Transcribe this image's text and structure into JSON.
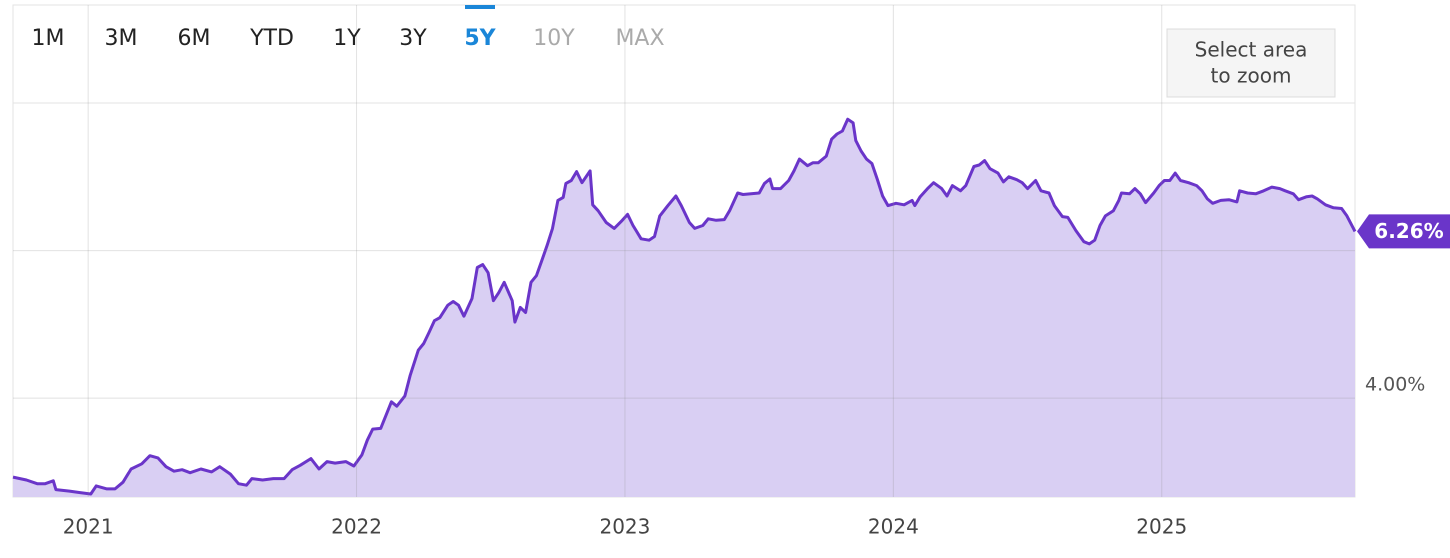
{
  "toolbar": {
    "ranges": [
      "1M",
      "3M",
      "6M",
      "YTD",
      "1Y",
      "3Y",
      "5Y",
      "10Y",
      "MAX"
    ],
    "active": 6,
    "disabled": [
      7,
      8
    ],
    "zoom_label": [
      "Select area",
      "to zoom"
    ]
  },
  "chart_data": {
    "type": "area",
    "color": "#6a35c9",
    "fill": "#d9cff3",
    "x": [
      2020.72,
      2020.77,
      2020.81,
      2020.84,
      2020.87,
      2020.88,
      2020.93,
      2020.97,
      2021.01,
      2021.03,
      2021.07,
      2021.1,
      2021.13,
      2021.16,
      2021.2,
      2021.23,
      2021.26,
      2021.29,
      2021.32,
      2021.35,
      2021.38,
      2021.42,
      2021.46,
      2021.49,
      2021.53,
      2021.56,
      2021.59,
      2021.61,
      2021.65,
      2021.69,
      2021.73,
      2021.76,
      2021.79,
      2021.83,
      2021.86,
      2021.89,
      2021.92,
      2021.96,
      2021.99,
      2022.02,
      2022.04,
      2022.06,
      2022.09,
      2022.11,
      2022.13,
      2022.15,
      2022.18,
      2022.2,
      2022.23,
      2022.25,
      2022.27,
      2022.29,
      2022.31,
      2022.34,
      2022.36,
      2022.38,
      2022.4,
      2022.43,
      2022.45,
      2022.47,
      2022.49,
      2022.51,
      2022.53,
      2022.55,
      2022.58,
      2022.59,
      2022.61,
      2022.63,
      2022.65,
      2022.67,
      2022.69,
      2022.71,
      2022.73,
      2022.75,
      2022.77,
      2022.78,
      2022.8,
      2022.82,
      2022.84,
      2022.87,
      2022.88,
      2022.9,
      2022.93,
      2022.96,
      2022.99,
      2023.01,
      2023.03,
      2023.06,
      2023.09,
      2023.11,
      2023.13,
      2023.16,
      2023.19,
      2023.21,
      2023.24,
      2023.26,
      2023.29,
      2023.31,
      2023.34,
      2023.37,
      2023.39,
      2023.42,
      2023.44,
      2023.47,
      2023.5,
      2023.52,
      2023.54,
      2023.55,
      2023.58,
      2023.61,
      2023.63,
      2023.65,
      2023.68,
      2023.7,
      2023.72,
      2023.75,
      2023.77,
      2023.79,
      2023.81,
      2023.83,
      2023.85,
      2023.86,
      2023.88,
      2023.9,
      2023.92,
      2023.94,
      2023.96,
      2023.98,
      2024.01,
      2024.04,
      2024.07,
      2024.08,
      2024.1,
      2024.13,
      2024.15,
      2024.18,
      2024.2,
      2024.22,
      2024.25,
      2024.27,
      2024.3,
      2024.32,
      2024.34,
      2024.36,
      2024.39,
      2024.41,
      2024.43,
      2024.46,
      2024.48,
      2024.5,
      2024.53,
      2024.55,
      2024.58,
      2024.6,
      2024.63,
      2024.65,
      2024.68,
      2024.71,
      2024.73,
      2024.75,
      2024.77,
      2024.79,
      2024.82,
      2024.84,
      2024.85,
      2024.88,
      2024.9,
      2024.92,
      2024.94,
      2024.97,
      2024.99,
      2025.01,
      2025.03,
      2025.05,
      2025.07,
      2025.1,
      2025.13,
      2025.15,
      2025.17,
      2025.19,
      2025.22,
      2025.25,
      2025.28,
      2025.29,
      2025.32,
      2025.35,
      2025.38,
      2025.41,
      2025.44,
      2025.46,
      2025.49,
      2025.51,
      2025.54,
      2025.56,
      2025.58,
      2025.61,
      2025.64,
      2025.67,
      2025.69,
      2025.72
    ],
    "values": [
      2.93,
      2.89,
      2.84,
      2.84,
      2.88,
      2.76,
      2.74,
      2.72,
      2.7,
      2.81,
      2.77,
      2.77,
      2.86,
      3.04,
      3.11,
      3.22,
      3.19,
      3.07,
      3.01,
      3.03,
      2.99,
      3.04,
      3.0,
      3.07,
      2.97,
      2.84,
      2.82,
      2.91,
      2.89,
      2.91,
      2.91,
      3.03,
      3.09,
      3.18,
      3.04,
      3.14,
      3.12,
      3.14,
      3.08,
      3.23,
      3.43,
      3.58,
      3.59,
      3.77,
      3.95,
      3.89,
      4.03,
      4.31,
      4.65,
      4.74,
      4.89,
      5.05,
      5.09,
      5.26,
      5.31,
      5.26,
      5.11,
      5.35,
      5.77,
      5.81,
      5.7,
      5.32,
      5.43,
      5.57,
      5.32,
      5.03,
      5.23,
      5.16,
      5.57,
      5.66,
      5.86,
      6.07,
      6.3,
      6.68,
      6.72,
      6.91,
      6.95,
      7.07,
      6.92,
      7.08,
      6.62,
      6.54,
      6.38,
      6.3,
      6.41,
      6.49,
      6.34,
      6.16,
      6.14,
      6.19,
      6.47,
      6.61,
      6.74,
      6.61,
      6.38,
      6.3,
      6.34,
      6.43,
      6.41,
      6.42,
      6.54,
      6.78,
      6.76,
      6.77,
      6.78,
      6.91,
      6.97,
      6.84,
      6.84,
      6.95,
      7.08,
      7.24,
      7.15,
      7.19,
      7.19,
      7.28,
      7.51,
      7.58,
      7.62,
      7.78,
      7.73,
      7.49,
      7.35,
      7.24,
      7.18,
      6.97,
      6.74,
      6.61,
      6.64,
      6.62,
      6.68,
      6.61,
      6.73,
      6.85,
      6.92,
      6.84,
      6.74,
      6.88,
      6.81,
      6.88,
      7.14,
      7.16,
      7.22,
      7.11,
      7.05,
      6.93,
      7.0,
      6.96,
      6.92,
      6.84,
      6.95,
      6.81,
      6.78,
      6.61,
      6.46,
      6.45,
      6.27,
      6.12,
      6.09,
      6.14,
      6.34,
      6.47,
      6.54,
      6.68,
      6.78,
      6.77,
      6.84,
      6.77,
      6.65,
      6.78,
      6.88,
      6.95,
      6.95,
      7.05,
      6.95,
      6.92,
      6.88,
      6.81,
      6.7,
      6.64,
      6.68,
      6.69,
      6.66,
      6.81,
      6.78,
      6.77,
      6.81,
      6.86,
      6.84,
      6.81,
      6.77,
      6.69,
      6.73,
      6.74,
      6.7,
      6.62,
      6.58,
      6.57,
      6.47,
      6.26
    ],
    "end_label": "6.26%",
    "xlim": [
      2020.72,
      2025.72
    ],
    "xticks": [
      2021,
      2022,
      2023,
      2024,
      2025
    ],
    "ylim": [
      2.66,
      8
    ],
    "yticks": [
      {
        "value": 4,
        "label": "4.00%"
      },
      {
        "value": 6,
        "label": null
      }
    ],
    "grid": true
  }
}
